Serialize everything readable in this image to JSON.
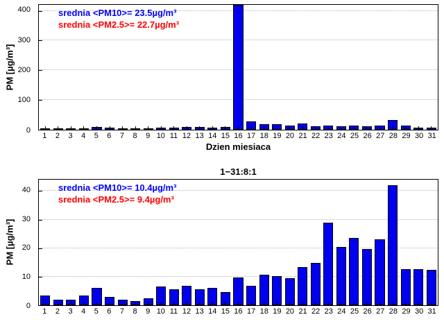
{
  "chart_data": [
    {
      "type": "bar",
      "title": "",
      "xlabel": "Dzien miesiaca",
      "ylabel": "PM [µg/m³]",
      "x": [
        1,
        2,
        3,
        4,
        5,
        6,
        7,
        8,
        9,
        10,
        11,
        12,
        13,
        14,
        15,
        16,
        17,
        18,
        19,
        20,
        21,
        22,
        23,
        24,
        25,
        26,
        27,
        28,
        29,
        30,
        31
      ],
      "values": [
        5,
        4,
        3,
        4,
        10,
        6,
        3,
        3,
        5,
        7,
        8,
        10,
        10,
        8,
        10,
        420,
        27,
        18,
        18,
        15,
        20,
        12,
        14,
        12,
        13,
        12,
        13,
        32,
        14,
        8,
        6
      ],
      "ylim": [
        0,
        420
      ],
      "yticks": [
        0,
        100,
        200,
        300,
        400
      ],
      "grid": true,
      "legend_position": "none",
      "bar_color": "#0000EE",
      "annotations": [
        {
          "text": "srednia <PM10>= 23.5µg/m³",
          "color": "#0000FF"
        },
        {
          "text": "srednia <PM2.5>= 22.7µg/m³",
          "color": "#FF0000"
        }
      ]
    },
    {
      "type": "bar",
      "title": "1−31:8:1",
      "xlabel": "",
      "ylabel": "PM [µg/m³]",
      "x": [
        1,
        2,
        3,
        4,
        5,
        6,
        7,
        8,
        9,
        10,
        11,
        12,
        13,
        14,
        15,
        16,
        17,
        18,
        19,
        20,
        21,
        22,
        23,
        24,
        25,
        26,
        27,
        28,
        29,
        30,
        31
      ],
      "values": [
        3.5,
        2,
        2,
        3.5,
        6,
        3,
        2,
        1.5,
        2.5,
        6.5,
        5.5,
        6.8,
        5.5,
        6,
        4.7,
        9.7,
        6.8,
        10.7,
        10.3,
        9.5,
        13.3,
        14.8,
        29,
        20.5,
        23.5,
        19.7,
        23,
        42,
        12.7,
        12.7,
        12.5
      ],
      "ylim": [
        0,
        44
      ],
      "yticks": [
        0,
        10,
        20,
        30,
        40
      ],
      "grid": true,
      "legend_position": "none",
      "bar_color": "#0000EE",
      "annotations": [
        {
          "text": "srednia <PM10>= 10.4µg/m³",
          "color": "#0000FF"
        },
        {
          "text": "srednia <PM2.5>= 9.4µg/m³",
          "color": "#FF0000"
        }
      ]
    }
  ]
}
